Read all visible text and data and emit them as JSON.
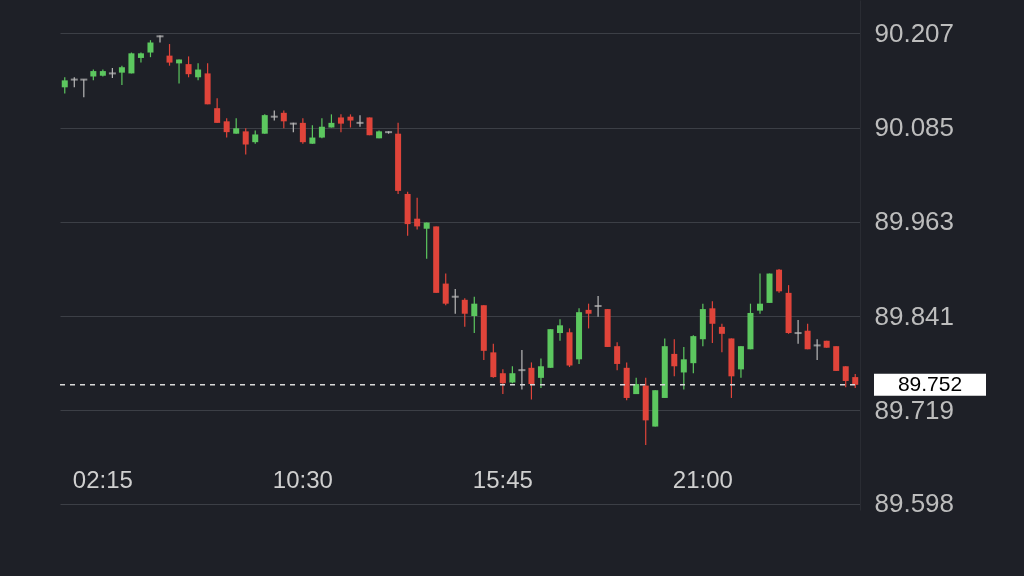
{
  "chart_data": {
    "type": "candlestick",
    "categories": [
      null,
      null,
      null,
      null,
      "02:15",
      null,
      null,
      null,
      null,
      null,
      null,
      null,
      null,
      null,
      null,
      null,
      null,
      null,
      null,
      null,
      null,
      null,
      null,
      null,
      null,
      "10:30",
      null,
      null,
      null,
      null,
      null,
      null,
      null,
      null,
      null,
      null,
      null,
      null,
      null,
      null,
      null,
      null,
      null,
      null,
      null,
      null,
      "15:45",
      null,
      null,
      null,
      null,
      null,
      null,
      null,
      null,
      null,
      null,
      null,
      null,
      null,
      null,
      null,
      null,
      null,
      null,
      null,
      null,
      "21:00",
      null,
      null,
      null,
      null,
      null,
      null,
      null,
      null,
      null,
      null,
      null,
      null,
      null,
      null,
      null,
      null
    ],
    "ohlc": [
      [
        90.137,
        90.15,
        90.129,
        90.146
      ],
      [
        90.147,
        90.15,
        90.137,
        90.147
      ],
      [
        90.147,
        90.147,
        90.124,
        90.147
      ],
      [
        90.151,
        90.16,
        90.146,
        90.158
      ],
      [
        90.152,
        90.16,
        90.151,
        90.158
      ],
      [
        90.155,
        90.162,
        90.149,
        90.155
      ],
      [
        90.156,
        90.165,
        90.14,
        90.163
      ],
      [
        90.155,
        90.182,
        90.155,
        90.181
      ],
      [
        90.175,
        90.182,
        90.169,
        90.181
      ],
      [
        90.182,
        90.198,
        90.176,
        90.195
      ],
      [
        90.203,
        90.204,
        90.195,
        90.203
      ],
      [
        90.178,
        90.193,
        90.165,
        90.169
      ],
      [
        90.168,
        90.173,
        90.142,
        90.173
      ],
      [
        90.167,
        90.177,
        90.15,
        90.154
      ],
      [
        90.15,
        90.168,
        90.146,
        90.16
      ],
      [
        90.155,
        90.168,
        90.115,
        90.115
      ],
      [
        90.11,
        90.123,
        90.091,
        90.091
      ],
      [
        90.093,
        90.097,
        90.072,
        90.079
      ],
      [
        90.077,
        90.097,
        90.077,
        90.084
      ],
      [
        90.08,
        90.084,
        90.05,
        90.063
      ],
      [
        90.066,
        90.081,
        90.064,
        90.076
      ],
      [
        90.077,
        90.102,
        90.077,
        90.101
      ],
      [
        90.099,
        90.107,
        90.094,
        90.099
      ],
      [
        90.104,
        90.107,
        90.084,
        90.093
      ],
      [
        90.09,
        90.091,
        90.079,
        90.09
      ],
      [
        90.091,
        90.097,
        90.064,
        90.066
      ],
      [
        90.064,
        90.088,
        90.064,
        90.072
      ],
      [
        90.072,
        90.097,
        90.071,
        90.086
      ],
      [
        90.085,
        90.102,
        90.085,
        90.091
      ],
      [
        90.098,
        90.102,
        90.079,
        90.09
      ],
      [
        90.099,
        90.102,
        90.085,
        90.094
      ],
      [
        90.091,
        90.101,
        90.086,
        90.091
      ],
      [
        90.098,
        90.098,
        90.075,
        90.075
      ],
      [
        90.071,
        90.081,
        90.071,
        90.08
      ],
      [
        90.079,
        90.08,
        90.077,
        90.079
      ],
      [
        90.077,
        90.091,
        89.999,
        90.003
      ],
      [
        89.999,
        90.002,
        89.945,
        89.96
      ],
      [
        89.967,
        89.994,
        89.953,
        89.957
      ],
      [
        89.954,
        89.962,
        89.915,
        89.962
      ],
      [
        89.957,
        89.957,
        89.871,
        89.871
      ],
      [
        89.883,
        89.896,
        89.855,
        89.857
      ],
      [
        89.866,
        89.876,
        89.844,
        89.866
      ],
      [
        89.862,
        89.864,
        89.827,
        89.844
      ],
      [
        89.841,
        89.866,
        89.819,
        89.857
      ],
      [
        89.855,
        89.855,
        89.784,
        89.796
      ],
      [
        89.794,
        89.805,
        89.761,
        89.762
      ],
      [
        89.767,
        89.772,
        89.74,
        89.754
      ],
      [
        89.755,
        89.776,
        89.754,
        89.767
      ],
      [
        89.771,
        89.797,
        89.746,
        89.771
      ],
      [
        89.774,
        89.781,
        89.733,
        89.753
      ],
      [
        89.761,
        89.786,
        89.748,
        89.776
      ],
      [
        89.774,
        89.824,
        89.774,
        89.824
      ],
      [
        89.819,
        89.837,
        89.809,
        89.829
      ],
      [
        89.82,
        89.825,
        89.775,
        89.777
      ],
      [
        89.785,
        89.851,
        89.779,
        89.846
      ],
      [
        89.849,
        89.857,
        89.825,
        89.844
      ],
      [
        89.854,
        89.867,
        89.84,
        89.854
      ],
      [
        89.85,
        89.85,
        89.801,
        89.801
      ],
      [
        89.802,
        89.807,
        89.771,
        89.779
      ],
      [
        89.774,
        89.781,
        89.732,
        89.735
      ],
      [
        89.74,
        89.761,
        89.74,
        89.753
      ],
      [
        89.751,
        89.761,
        89.674,
        89.706
      ],
      [
        89.698,
        89.745,
        89.698,
        89.745
      ],
      [
        89.735,
        89.812,
        89.735,
        89.802
      ],
      [
        89.792,
        89.811,
        89.763,
        89.776
      ],
      [
        89.768,
        89.801,
        89.746,
        89.785
      ],
      [
        89.78,
        89.816,
        89.767,
        89.815
      ],
      [
        89.811,
        89.857,
        89.802,
        89.85
      ],
      [
        89.851,
        89.86,
        89.806,
        89.831
      ],
      [
        89.827,
        89.831,
        89.794,
        89.818
      ],
      [
        89.812,
        89.812,
        89.735,
        89.763
      ],
      [
        89.772,
        89.802,
        89.761,
        89.802
      ],
      [
        89.798,
        89.857,
        89.798,
        89.845
      ],
      [
        89.848,
        89.896,
        89.844,
        89.857
      ],
      [
        89.858,
        89.896,
        89.858,
        89.896
      ],
      [
        89.901,
        89.902,
        89.871,
        89.873
      ],
      [
        89.871,
        89.881,
        89.818,
        89.819
      ],
      [
        89.819,
        89.836,
        89.805,
        89.819
      ],
      [
        89.822,
        89.831,
        89.798,
        89.798
      ],
      [
        89.803,
        89.811,
        89.784,
        89.803
      ],
      [
        89.809,
        89.809,
        89.8,
        89.8
      ],
      [
        89.802,
        89.802,
        89.77,
        89.77
      ],
      [
        89.776,
        89.776,
        89.749,
        89.757
      ],
      [
        89.762,
        89.766,
        89.748,
        89.752
      ]
    ],
    "colors": [
      "#5cc75f",
      "#b9b9b9",
      "#b9b9b9",
      "#5cc75f",
      "#5cc75f",
      "#b9b9b9",
      "#5cc75f",
      "#5cc75f",
      "#5cc75f",
      "#5cc75f",
      "#b9b9b9",
      "#e0443a",
      "#5cc75f",
      "#e0443a",
      "#5cc75f",
      "#e0443a",
      "#e0443a",
      "#e0443a",
      "#5cc75f",
      "#e0443a",
      "#5cc75f",
      "#5cc75f",
      "#b9b9b9",
      "#e0443a",
      "#b9b9b9",
      "#e0443a",
      "#5cc75f",
      "#5cc75f",
      "#5cc75f",
      "#e0443a",
      "#e0443a",
      "#b9b9b9",
      "#e0443a",
      "#5cc75f",
      "#b9b9b9",
      "#e0443a",
      "#e0443a",
      "#e0443a",
      "#5cc75f",
      "#e0443a",
      "#e0443a",
      "#b9b9b9",
      "#e0443a",
      "#5cc75f",
      "#e0443a",
      "#e0443a",
      "#e0443a",
      "#5cc75f",
      "#b9b9b9",
      "#e0443a",
      "#5cc75f",
      "#5cc75f",
      "#5cc75f",
      "#e0443a",
      "#5cc75f",
      "#e0443a",
      "#b9b9b9",
      "#e0443a",
      "#e0443a",
      "#e0443a",
      "#5cc75f",
      "#e0443a",
      "#5cc75f",
      "#5cc75f",
      "#e0443a",
      "#5cc75f",
      "#5cc75f",
      "#5cc75f",
      "#e0443a",
      "#e0443a",
      "#e0443a",
      "#5cc75f",
      "#5cc75f",
      "#5cc75f",
      "#5cc75f",
      "#e0443a",
      "#e0443a",
      "#b9b9b9",
      "#e0443a",
      "#b9b9b9",
      "#e0443a",
      "#e0443a",
      "#e0443a",
      "#e0443a"
    ],
    "ylim": [
      89.59,
      90.25
    ],
    "yticks": [
      89.598,
      89.719,
      89.841,
      89.963,
      90.085,
      90.207
    ],
    "grid": "y",
    "ref_lines": [
      {
        "axis": "y",
        "value": 89.752,
        "label": "89.752",
        "color": "#d8d8d8",
        "line_style": "dashed"
      }
    ]
  }
}
